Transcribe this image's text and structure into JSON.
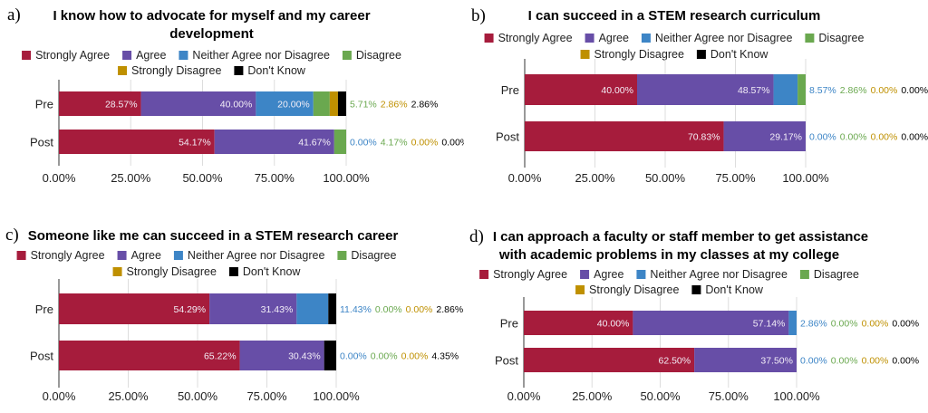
{
  "colors": {
    "Strongly Agree": "#a61c3c",
    "Agree": "#674ea7",
    "Neither Agree nor Disagree": "#3d85c6",
    "Disagree": "#6aa84f",
    "Strongly Disagree": "#bf9000",
    "Don't Know": "#000000"
  },
  "chart_data": [
    {
      "panel_label": "a)",
      "type": "bar",
      "orientation": "horizontal",
      "stacked": true,
      "title": [
        "I know how to advocate for myself and my career",
        "development"
      ],
      "categories": [
        "Pre",
        "Post"
      ],
      "legend": [
        "Strongly Agree",
        "Agree",
        "Neither Agree nor Disagree",
        "Disagree",
        "Strongly Disagree",
        "Don't Know"
      ],
      "legend_position": "top",
      "series": [
        {
          "name": "Strongly Agree",
          "values": [
            28.57,
            54.17
          ]
        },
        {
          "name": "Agree",
          "values": [
            40.0,
            41.67
          ]
        },
        {
          "name": "Neither Agree nor Disagree",
          "values": [
            20.0,
            0.0
          ]
        },
        {
          "name": "Disagree",
          "values": [
            5.71,
            4.17
          ]
        },
        {
          "name": "Strongly Disagree",
          "values": [
            2.86,
            0.0
          ]
        },
        {
          "name": "Don't Know",
          "values": [
            2.86,
            0.0
          ]
        }
      ],
      "xlim": [
        0,
        100
      ],
      "xticks": [
        "0.00%",
        "25.00%",
        "50.00%",
        "75.00%",
        "100.00%"
      ],
      "grid": true
    },
    {
      "panel_label": "b)",
      "type": "bar",
      "orientation": "horizontal",
      "stacked": true,
      "title": [
        "I can succeed in a STEM research curriculum"
      ],
      "categories": [
        "Pre",
        "Post"
      ],
      "legend": [
        "Strongly Agree",
        "Agree",
        "Neither Agree nor Disagree",
        "Disagree",
        "Strongly Disagree",
        "Don't Know"
      ],
      "legend_position": "top",
      "series": [
        {
          "name": "Strongly Agree",
          "values": [
            40.0,
            70.83
          ]
        },
        {
          "name": "Agree",
          "values": [
            48.57,
            29.17
          ]
        },
        {
          "name": "Neither Agree nor Disagree",
          "values": [
            8.57,
            0.0
          ]
        },
        {
          "name": "Disagree",
          "values": [
            2.86,
            0.0
          ]
        },
        {
          "name": "Strongly Disagree",
          "values": [
            0.0,
            0.0
          ]
        },
        {
          "name": "Don't Know",
          "values": [
            0.0,
            0.0
          ]
        }
      ],
      "xlim": [
        0,
        100
      ],
      "xticks": [
        "0.00%",
        "25.00%",
        "50.00%",
        "75.00%",
        "100.00%"
      ],
      "grid": true
    },
    {
      "panel_label": "c)",
      "type": "bar",
      "orientation": "horizontal",
      "stacked": true,
      "title": [
        "Someone like me can succeed in a STEM research career"
      ],
      "categories": [
        "Pre",
        "Post"
      ],
      "legend": [
        "Strongly Agree",
        "Agree",
        "Neither Agree nor Disagree",
        "Disagree",
        "Strongly Disagree",
        "Don't Know"
      ],
      "legend_position": "top",
      "series": [
        {
          "name": "Strongly Agree",
          "values": [
            54.29,
            65.22
          ]
        },
        {
          "name": "Agree",
          "values": [
            31.43,
            30.43
          ]
        },
        {
          "name": "Neither Agree nor Disagree",
          "values": [
            11.43,
            0.0
          ]
        },
        {
          "name": "Disagree",
          "values": [
            0.0,
            0.0
          ]
        },
        {
          "name": "Strongly Disagree",
          "values": [
            0.0,
            0.0
          ]
        },
        {
          "name": "Don't Know",
          "values": [
            2.86,
            4.35
          ]
        }
      ],
      "xlim": [
        0,
        100
      ],
      "xticks": [
        "0.00%",
        "25.00%",
        "50.00%",
        "75.00%",
        "100.00%"
      ],
      "grid": true
    },
    {
      "panel_label": "d)",
      "type": "bar",
      "orientation": "horizontal",
      "stacked": true,
      "title": [
        "I can approach a faculty or staff member to get assistance",
        "with academic problems in my classes at my college"
      ],
      "categories": [
        "Pre",
        "Post"
      ],
      "legend": [
        "Strongly Agree",
        "Agree",
        "Neither Agree nor Disagree",
        "Disagree",
        "Strongly Disagree",
        "Don't Know"
      ],
      "legend_position": "top",
      "series": [
        {
          "name": "Strongly Agree",
          "values": [
            40.0,
            62.5
          ]
        },
        {
          "name": "Agree",
          "values": [
            57.14,
            37.5
          ]
        },
        {
          "name": "Neither Agree nor Disagree",
          "values": [
            2.86,
            0.0
          ]
        },
        {
          "name": "Disagree",
          "values": [
            0.0,
            0.0
          ]
        },
        {
          "name": "Strongly Disagree",
          "values": [
            0.0,
            0.0
          ]
        },
        {
          "name": "Don't Know",
          "values": [
            0.0,
            0.0
          ]
        }
      ],
      "xlim": [
        0,
        100
      ],
      "xticks": [
        "0.00%",
        "25.00%",
        "50.00%",
        "75.00%",
        "100.00%"
      ],
      "grid": true
    }
  ]
}
